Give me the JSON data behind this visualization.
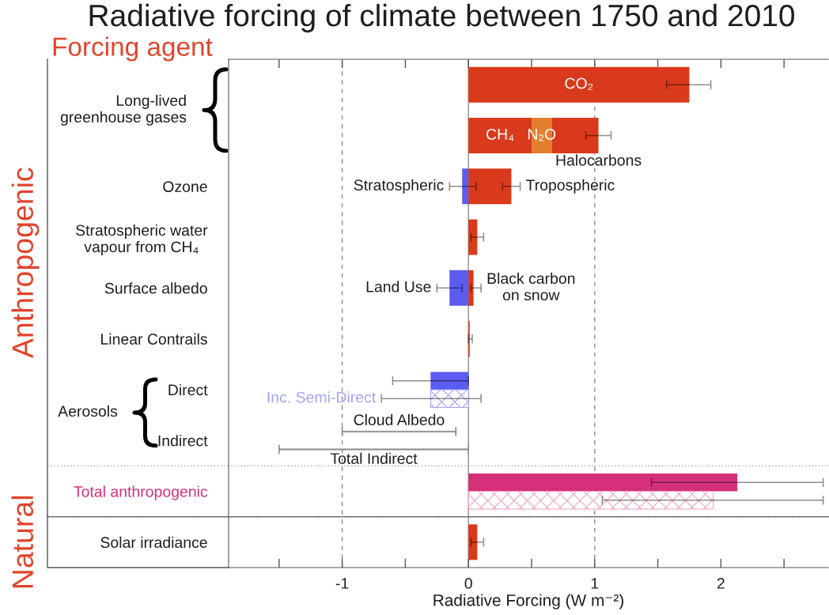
{
  "chart_data": {
    "type": "bar",
    "orientation": "horizontal",
    "title": "Radiative forcing of climate between 1750 and 2010",
    "xlabel": "Radiative Forcing (W m⁻²)",
    "categories": [
      null,
      null,
      "Ozone",
      "Stratospheric water\nvapour from CH₄",
      "Surface albedo",
      "Linear Contrails",
      "Direct",
      "Indirect",
      "Total anthropogenic",
      "Solar irradiance"
    ],
    "xlim": [
      -1.9,
      2.85
    ],
    "xticks": [
      {
        "value": -1.5,
        "label": null
      },
      -1,
      {
        "value": -0.5,
        "label": null
      },
      0,
      {
        "value": 0.5,
        "label": null
      },
      1,
      {
        "value": 1.5,
        "label": null
      },
      2,
      {
        "value": 2.5,
        "label": null
      }
    ],
    "ref_lines": [
      {
        "axis": "x",
        "value": -1,
        "line_style": "dashed",
        "color": "#8c8c8c"
      },
      {
        "axis": "x",
        "value": 0,
        "line_style": "solid",
        "color": "#8c8c8c"
      },
      {
        "axis": "x",
        "value": 1,
        "line_style": "dashed",
        "color": "#8c8c8c"
      }
    ],
    "annotations": [
      "Forcing agent",
      "Anthropogenic",
      "Natural",
      "Long-lived\ngreenhouse gases",
      "Aerosols"
    ],
    "series": [
      {
        "name": "CO₂",
        "color": "#d93a1b",
        "values": [
          1.75,
          null,
          null,
          null,
          null,
          null,
          null,
          null,
          null,
          null
        ],
        "errors": [
          [
            1.57,
            1.92
          ],
          null,
          null,
          null,
          null,
          null,
          null,
          null,
          null,
          null
        ]
      },
      {
        "name": "CH₄",
        "color": "#d93a1b",
        "values": [
          null,
          0.5,
          null,
          null,
          null,
          null,
          null,
          null,
          null,
          null
        ]
      },
      {
        "name": "N₂O",
        "color": "#e3802f",
        "values": [
          null,
          0.16,
          null,
          null,
          null,
          null,
          null,
          null,
          null,
          null
        ],
        "base": [
          null,
          0.5,
          null,
          null,
          null,
          null,
          null,
          null,
          null,
          null
        ]
      },
      {
        "name": "Halocarbons",
        "color": "#d93a1b",
        "values": [
          null,
          0.37,
          null,
          null,
          null,
          null,
          null,
          null,
          null,
          null
        ],
        "base": [
          null,
          0.66,
          null,
          null,
          null,
          null,
          null,
          null,
          null,
          null
        ],
        "errors": [
          null,
          [
            0.93,
            1.13
          ],
          null,
          null,
          null,
          null,
          null,
          null,
          null,
          null
        ]
      },
      {
        "name": "Stratospheric",
        "color": "#5c5cf0",
        "values": [
          null,
          null,
          -0.05,
          null,
          null,
          null,
          null,
          null,
          null,
          null
        ],
        "errors": [
          null,
          null,
          [
            -0.15,
            0.06
          ],
          null,
          null,
          null,
          null,
          null,
          null,
          null
        ]
      },
      {
        "name": "Tropospheric",
        "color": "#d93a1b",
        "values": [
          null,
          null,
          0.34,
          null,
          null,
          null,
          null,
          null,
          null,
          null
        ],
        "errors": [
          null,
          null,
          [
            0.27,
            0.41
          ],
          null,
          null,
          null,
          null,
          null,
          null,
          null
        ]
      },
      {
        "color": "#d93a1b",
        "values": [
          null,
          null,
          null,
          0.07,
          null,
          0.01,
          null,
          null,
          null,
          0.07
        ],
        "errors": [
          null,
          null,
          null,
          [
            0.02,
            0.12
          ],
          null,
          [
            0,
            0.03
          ],
          null,
          null,
          null,
          [
            0.02,
            0.12
          ]
        ]
      },
      {
        "name": "Land Use",
        "color": "#5c5cf0",
        "values": [
          null,
          null,
          null,
          null,
          -0.15,
          null,
          null,
          null,
          null,
          null
        ],
        "errors": [
          null,
          null,
          null,
          null,
          [
            -0.25,
            -0.05
          ],
          null,
          null,
          null,
          null,
          null
        ]
      },
      {
        "name": "Black carbon\non snow",
        "color": "#d93a1b",
        "values": [
          null,
          null,
          null,
          null,
          0.04,
          null,
          null,
          null,
          null,
          null
        ],
        "errors": [
          null,
          null,
          null,
          null,
          [
            0.02,
            0.1
          ],
          null,
          null,
          null,
          null,
          null
        ]
      },
      {
        "color": "#5c5cf0",
        "values": [
          null,
          null,
          null,
          null,
          null,
          null,
          -0.3,
          null,
          null,
          null
        ],
        "errors": [
          null,
          null,
          null,
          null,
          null,
          null,
          [
            -0.6,
            0
          ],
          null,
          null,
          null
        ]
      },
      {
        "name": "Inc. Semi-Direct",
        "color": "#a3a3f5",
        "values": [
          null,
          null,
          null,
          null,
          null,
          null,
          -0.3,
          null,
          null,
          null
        ],
        "errors": [
          null,
          null,
          null,
          null,
          null,
          null,
          [
            -0.69,
            0.1
          ],
          null,
          null,
          null
        ]
      },
      {
        "name": "Cloud Albedo",
        "color": "#8c8c8c",
        "line_style": "solid",
        "values": [
          null,
          null,
          null,
          null,
          null,
          null,
          null,
          0.9,
          null,
          null
        ],
        "base": [
          null,
          null,
          null,
          null,
          null,
          null,
          null,
          -1.0,
          null,
          null
        ]
      },
      {
        "name": "Total Indirect",
        "color": "#8c8c8c",
        "line_style": "solid",
        "values": [
          null,
          null,
          null,
          null,
          null,
          null,
          null,
          1.5,
          null,
          null
        ],
        "base": [
          null,
          null,
          null,
          null,
          null,
          null,
          null,
          -1.5,
          null,
          null
        ]
      },
      {
        "color": "#d5307a",
        "values": [
          null,
          null,
          null,
          null,
          null,
          null,
          null,
          null,
          2.13,
          null
        ],
        "errors": [
          null,
          null,
          null,
          null,
          null,
          null,
          null,
          null,
          [
            1.45,
            2.81
          ],
          null
        ]
      },
      {
        "color": "#f0a2c4",
        "values": [
          null,
          null,
          null,
          null,
          null,
          null,
          null,
          null,
          1.94,
          null
        ],
        "errors": [
          null,
          null,
          null,
          null,
          null,
          null,
          null,
          null,
          [
            1.06,
            2.81
          ],
          null
        ]
      }
    ]
  }
}
